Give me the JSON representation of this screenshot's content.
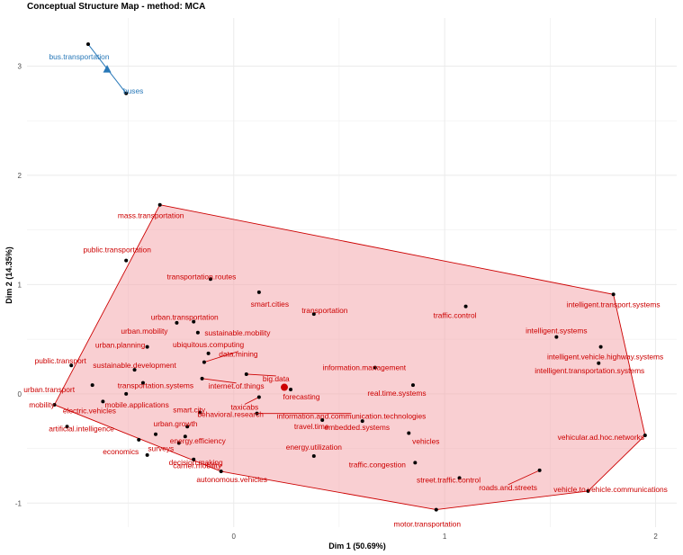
{
  "chart_data": {
    "type": "scatter",
    "title": "Conceptual Structure Map - method: MCA",
    "xlabel": "Dim 1 (50.69%)",
    "ylabel": "Dim 2 (14.35%)",
    "xlim": [
      -0.98,
      2.1
    ],
    "ylim": [
      -1.22,
      3.44
    ],
    "xticks": [
      0,
      1,
      2
    ],
    "yticks": [
      -1,
      0,
      1,
      2,
      3
    ],
    "grid": true,
    "colors": {
      "cluster1": "#cc0000",
      "cluster1_fill": "#f4a8ad",
      "cluster2": "#2878b8",
      "point": "#000000",
      "grid": "#ebebeb"
    },
    "clusters": [
      {
        "id": 1,
        "color": "#cc0000",
        "centroid": [
          0.24,
          0.06
        ],
        "hull": [
          [
            -0.35,
            1.73
          ],
          [
            1.8,
            0.91
          ],
          [
            1.95,
            -0.38
          ],
          [
            1.68,
            -0.89
          ],
          [
            0.96,
            -1.06
          ],
          [
            -0.06,
            -0.71
          ],
          [
            -0.85,
            -0.1
          ]
        ],
        "points": [
          {
            "label": "mass.transportation",
            "x": -0.35,
            "y": 1.73
          },
          {
            "label": "public.transportation",
            "x": -0.51,
            "y": 1.22
          },
          {
            "label": "transportation.routes",
            "x": -0.11,
            "y": 1.05
          },
          {
            "label": "smart.cities",
            "x": 0.12,
            "y": 0.93
          },
          {
            "label": "transportation",
            "x": 0.38,
            "y": 0.73
          },
          {
            "label": "traffic.control",
            "x": 1.1,
            "y": 0.8
          },
          {
            "label": "intelligent.transport.systems",
            "x": 1.8,
            "y": 0.91
          },
          {
            "label": "urban.transportation",
            "x": -0.19,
            "y": 0.66
          },
          {
            "label": "urban.mobility",
            "x": -0.27,
            "y": 0.65
          },
          {
            "label": "sustainable.mobility",
            "x": -0.17,
            "y": 0.56
          },
          {
            "label": "intelligent.systems",
            "x": 1.53,
            "y": 0.52
          },
          {
            "label": "urban.planning",
            "x": -0.41,
            "y": 0.43
          },
          {
            "label": "intelligent.vehicle.highway.systems",
            "x": 1.74,
            "y": 0.43
          },
          {
            "label": "ubiquitous.computing",
            "x": -0.12,
            "y": 0.37
          },
          {
            "label": "public.transport",
            "x": -0.77,
            "y": 0.26
          },
          {
            "label": "sustainable.development",
            "x": -0.47,
            "y": 0.22
          },
          {
            "label": "data.mining",
            "x": -0.14,
            "y": 0.29
          },
          {
            "label": "intelligent.transportation.systems",
            "x": 1.73,
            "y": 0.28
          },
          {
            "label": "information.management",
            "x": 0.67,
            "y": 0.24
          },
          {
            "label": "big.data",
            "x": 0.06,
            "y": 0.18
          },
          {
            "label": "urban.transport",
            "x": -0.67,
            "y": 0.08
          },
          {
            "label": "transportation.systems",
            "x": -0.43,
            "y": 0.1
          },
          {
            "label": "internet.of.things",
            "x": -0.15,
            "y": 0.14
          },
          {
            "label": "forecasting",
            "x": 0.27,
            "y": 0.04
          },
          {
            "label": "real.time.systems",
            "x": 0.85,
            "y": 0.08
          },
          {
            "label": "mobile.applications",
            "x": -0.51,
            "y": 0.0
          },
          {
            "label": "mobility",
            "x": -0.85,
            "y": -0.1
          },
          {
            "label": "electric.vehicles",
            "x": -0.62,
            "y": -0.07
          },
          {
            "label": "smart.city",
            "x": -0.16,
            "y": -0.17
          },
          {
            "label": "taxicabs",
            "x": 0.12,
            "y": -0.03
          },
          {
            "label": "information.and.communication.technologies",
            "x": 0.11,
            "y": -0.18
          },
          {
            "label": "behavioral.research",
            "x": -0.22,
            "y": -0.3
          },
          {
            "label": "artificial.intelligence",
            "x": -0.79,
            "y": -0.3
          },
          {
            "label": "travel.time",
            "x": 0.42,
            "y": -0.24
          },
          {
            "label": "embedded.systems",
            "x": 0.61,
            "y": -0.25
          },
          {
            "label": "urban.growth",
            "x": -0.37,
            "y": -0.37
          },
          {
            "label": "energy.efficiency",
            "x": -0.23,
            "y": -0.39
          },
          {
            "label": "vehicular.ad.hoc.networks",
            "x": 1.95,
            "y": -0.38
          },
          {
            "label": "economics",
            "x": -0.45,
            "y": -0.42
          },
          {
            "label": "surveys",
            "x": -0.26,
            "y": -0.45
          },
          {
            "label": "vehicles",
            "x": 0.83,
            "y": -0.36
          },
          {
            "label": "carrier.mobility",
            "x": -0.19,
            "y": -0.6
          },
          {
            "label": "energy.utilization",
            "x": 0.38,
            "y": -0.57
          },
          {
            "label": "traffic.congestion",
            "x": 0.86,
            "y": -0.63
          },
          {
            "label": "decision.making",
            "x": -0.41,
            "y": -0.56
          },
          {
            "label": "autonomous.vehicles",
            "x": -0.06,
            "y": -0.71
          },
          {
            "label": "street.traffic.control",
            "x": 1.07,
            "y": -0.77
          },
          {
            "label": "roads.and.streets",
            "x": 1.45,
            "y": -0.7
          },
          {
            "label": "vehicle.to.vehicle.communications",
            "x": 1.68,
            "y": -0.89
          },
          {
            "label": "motor.transportation",
            "x": 0.96,
            "y": -1.06
          }
        ]
      },
      {
        "id": 2,
        "color": "#2878b8",
        "centroid": [
          -0.6,
          2.97
        ],
        "hull": [
          [
            -0.69,
            3.2
          ],
          [
            -0.51,
            2.75
          ]
        ],
        "points": [
          {
            "label": "bus.transportation",
            "x": -0.69,
            "y": 3.2
          },
          {
            "label": "buses",
            "x": -0.51,
            "y": 2.75
          }
        ]
      }
    ]
  }
}
